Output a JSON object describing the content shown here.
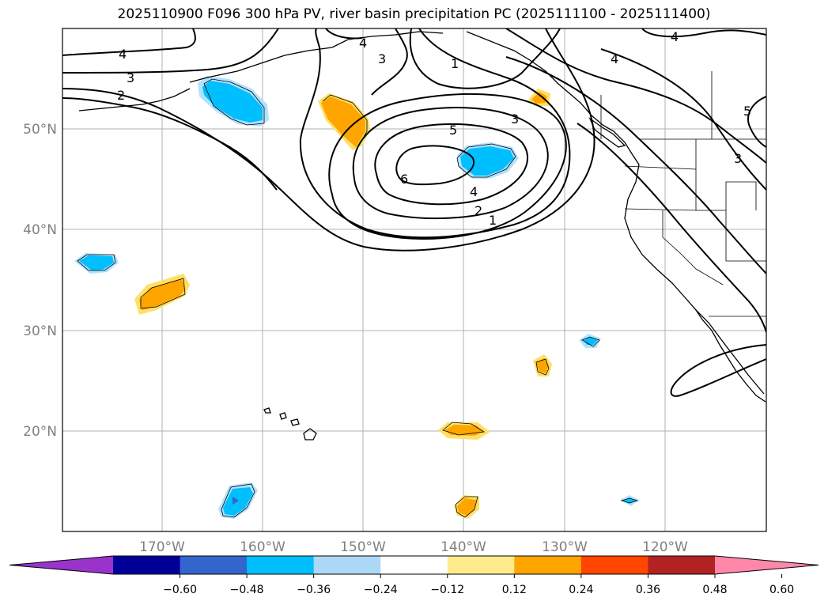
{
  "title": "2025110900 F096 300 hPa PV, river basin precipitation PC (2025111100 - 2025111400)",
  "lon_labels": [
    "170°W",
    "160°W",
    "150°W",
    "140°W",
    "130°W",
    "120°W"
  ],
  "lat_labels": [
    "50°N",
    "40°N",
    "30°N",
    "20°N"
  ],
  "colorbar": {
    "ticks": [
      "−0.60",
      "−0.48",
      "−0.36",
      "−0.24",
      "−0.12",
      "0.12",
      "0.24",
      "0.36",
      "0.48",
      "0.60"
    ],
    "colors": [
      "#9933cc",
      "#000099",
      "#3366cc",
      "#00bfff",
      "#add8f8",
      "#ffffff",
      "#ffeb8c",
      "#ffa500",
      "#ff4500",
      "#b22222",
      "#ff88aa"
    ]
  },
  "contour_labels": {
    "c1a": "1",
    "c1b": "1",
    "c2a": "2",
    "c2b": "2",
    "c3a": "3",
    "c3b": "3",
    "c3c": "3",
    "c3d": "3",
    "c4a": "4",
    "c4b": "4",
    "c4c": "4",
    "c4d": "4",
    "c4e": "4",
    "c5a": "5",
    "c5b": "5",
    "c6a": "6"
  },
  "colors": {
    "positive": "#ffa500",
    "positive_light": "#ffe066",
    "negative": "#00bfff",
    "negative_light": "#b0e2ff",
    "grid": "#b0b0b0",
    "tick_text": "#808080"
  }
}
